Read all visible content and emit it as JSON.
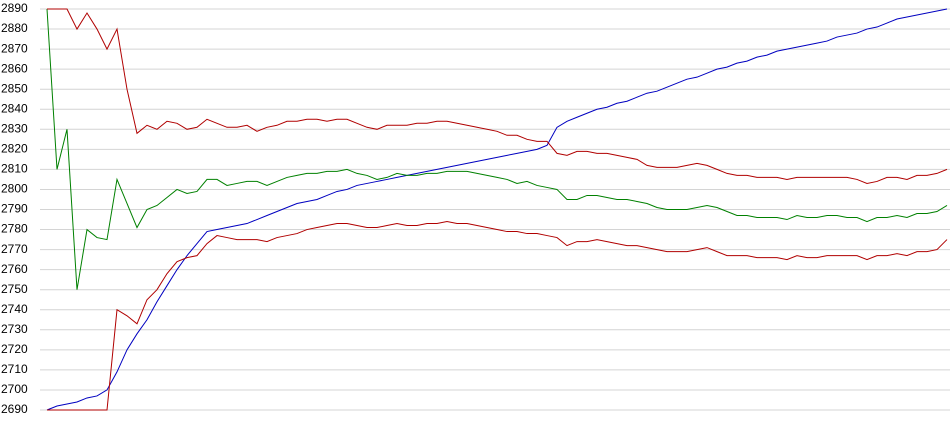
{
  "chart_data": {
    "type": "line",
    "ylim": [
      2690,
      2890
    ],
    "yticks": [
      2690,
      2700,
      2710,
      2720,
      2730,
      2740,
      2750,
      2760,
      2770,
      2780,
      2790,
      2800,
      2810,
      2820,
      2830,
      2840,
      2850,
      2860,
      2870,
      2880,
      2890
    ],
    "grid": true,
    "series": [
      {
        "color": "#0000c0",
        "values": [
          2690,
          2692,
          2693,
          2694,
          2696,
          2697,
          2700,
          2709,
          2720,
          2728,
          2735,
          2744,
          2752,
          2760,
          2767,
          2773,
          2779,
          2780,
          2781,
          2782,
          2783,
          2785,
          2787,
          2789,
          2791,
          2793,
          2794,
          2795,
          2797,
          2799,
          2800,
          2802,
          2803,
          2804,
          2805,
          2806,
          2807,
          2808,
          2809,
          2810,
          2811,
          2812,
          2813,
          2814,
          2815,
          2816,
          2817,
          2818,
          2819,
          2820,
          2822,
          2831,
          2834,
          2836,
          2838,
          2840,
          2841,
          2843,
          2844,
          2846,
          2848,
          2849,
          2851,
          2853,
          2855,
          2856,
          2858,
          2860,
          2861,
          2863,
          2864,
          2866,
          2867,
          2869,
          2870,
          2871,
          2872,
          2873,
          2874,
          2876,
          2877,
          2878,
          2880,
          2881,
          2883,
          2885,
          2886,
          2887,
          2888,
          2889,
          2890
        ]
      },
      {
        "color": "#008000",
        "values": [
          2890,
          2810,
          2830,
          2750,
          2780,
          2776,
          2775,
          2805,
          2793,
          2781,
          2790,
          2792,
          2796,
          2800,
          2798,
          2799,
          2805,
          2805,
          2802,
          2803,
          2804,
          2804,
          2802,
          2804,
          2806,
          2807,
          2808,
          2808,
          2809,
          2809,
          2810,
          2808,
          2807,
          2805,
          2806,
          2808,
          2807,
          2807,
          2808,
          2808,
          2809,
          2809,
          2809,
          2808,
          2807,
          2806,
          2805,
          2803,
          2804,
          2802,
          2801,
          2800,
          2795,
          2795,
          2797,
          2797,
          2796,
          2795,
          2795,
          2794,
          2793,
          2791,
          2790,
          2790,
          2790,
          2791,
          2792,
          2791,
          2789,
          2787,
          2787,
          2786,
          2786,
          2786,
          2785,
          2787,
          2786,
          2786,
          2787,
          2787,
          2786,
          2786,
          2784,
          2786,
          2786,
          2787,
          2786,
          2788,
          2788,
          2789,
          2792
        ]
      },
      {
        "color": "#b00000",
        "values": [
          2890,
          2890,
          2890,
          2880,
          2888,
          2880,
          2870,
          2880,
          2850,
          2828,
          2832,
          2830,
          2834,
          2833,
          2830,
          2831,
          2835,
          2833,
          2831,
          2831,
          2832,
          2829,
          2831,
          2832,
          2834,
          2834,
          2835,
          2835,
          2834,
          2835,
          2835,
          2833,
          2831,
          2830,
          2832,
          2832,
          2832,
          2833,
          2833,
          2834,
          2834,
          2833,
          2832,
          2831,
          2830,
          2829,
          2827,
          2827,
          2825,
          2824,
          2824,
          2818,
          2817,
          2819,
          2819,
          2818,
          2818,
          2817,
          2816,
          2815,
          2812,
          2811,
          2811,
          2811,
          2812,
          2813,
          2812,
          2810,
          2808,
          2807,
          2807,
          2806,
          2806,
          2806,
          2805,
          2806,
          2806,
          2806,
          2806,
          2806,
          2806,
          2805,
          2803,
          2804,
          2806,
          2806,
          2805,
          2807,
          2807,
          2808,
          2810
        ]
      },
      {
        "color": "#b00000",
        "values": [
          2690,
          2690,
          2690,
          2690,
          2690,
          2690,
          2690,
          2740,
          2737,
          2733,
          2745,
          2750,
          2758,
          2764,
          2766,
          2767,
          2773,
          2777,
          2776,
          2775,
          2775,
          2775,
          2774,
          2776,
          2777,
          2778,
          2780,
          2781,
          2782,
          2783,
          2783,
          2782,
          2781,
          2781,
          2782,
          2783,
          2782,
          2782,
          2783,
          2783,
          2784,
          2783,
          2783,
          2782,
          2781,
          2780,
          2779,
          2779,
          2778,
          2778,
          2777,
          2776,
          2772,
          2774,
          2774,
          2775,
          2774,
          2773,
          2772,
          2772,
          2771,
          2770,
          2769,
          2769,
          2769,
          2770,
          2771,
          2769,
          2767,
          2767,
          2767,
          2766,
          2766,
          2766,
          2765,
          2767,
          2766,
          2766,
          2767,
          2767,
          2767,
          2767,
          2765,
          2767,
          2767,
          2768,
          2767,
          2769,
          2769,
          2770,
          2775
        ]
      }
    ]
  }
}
